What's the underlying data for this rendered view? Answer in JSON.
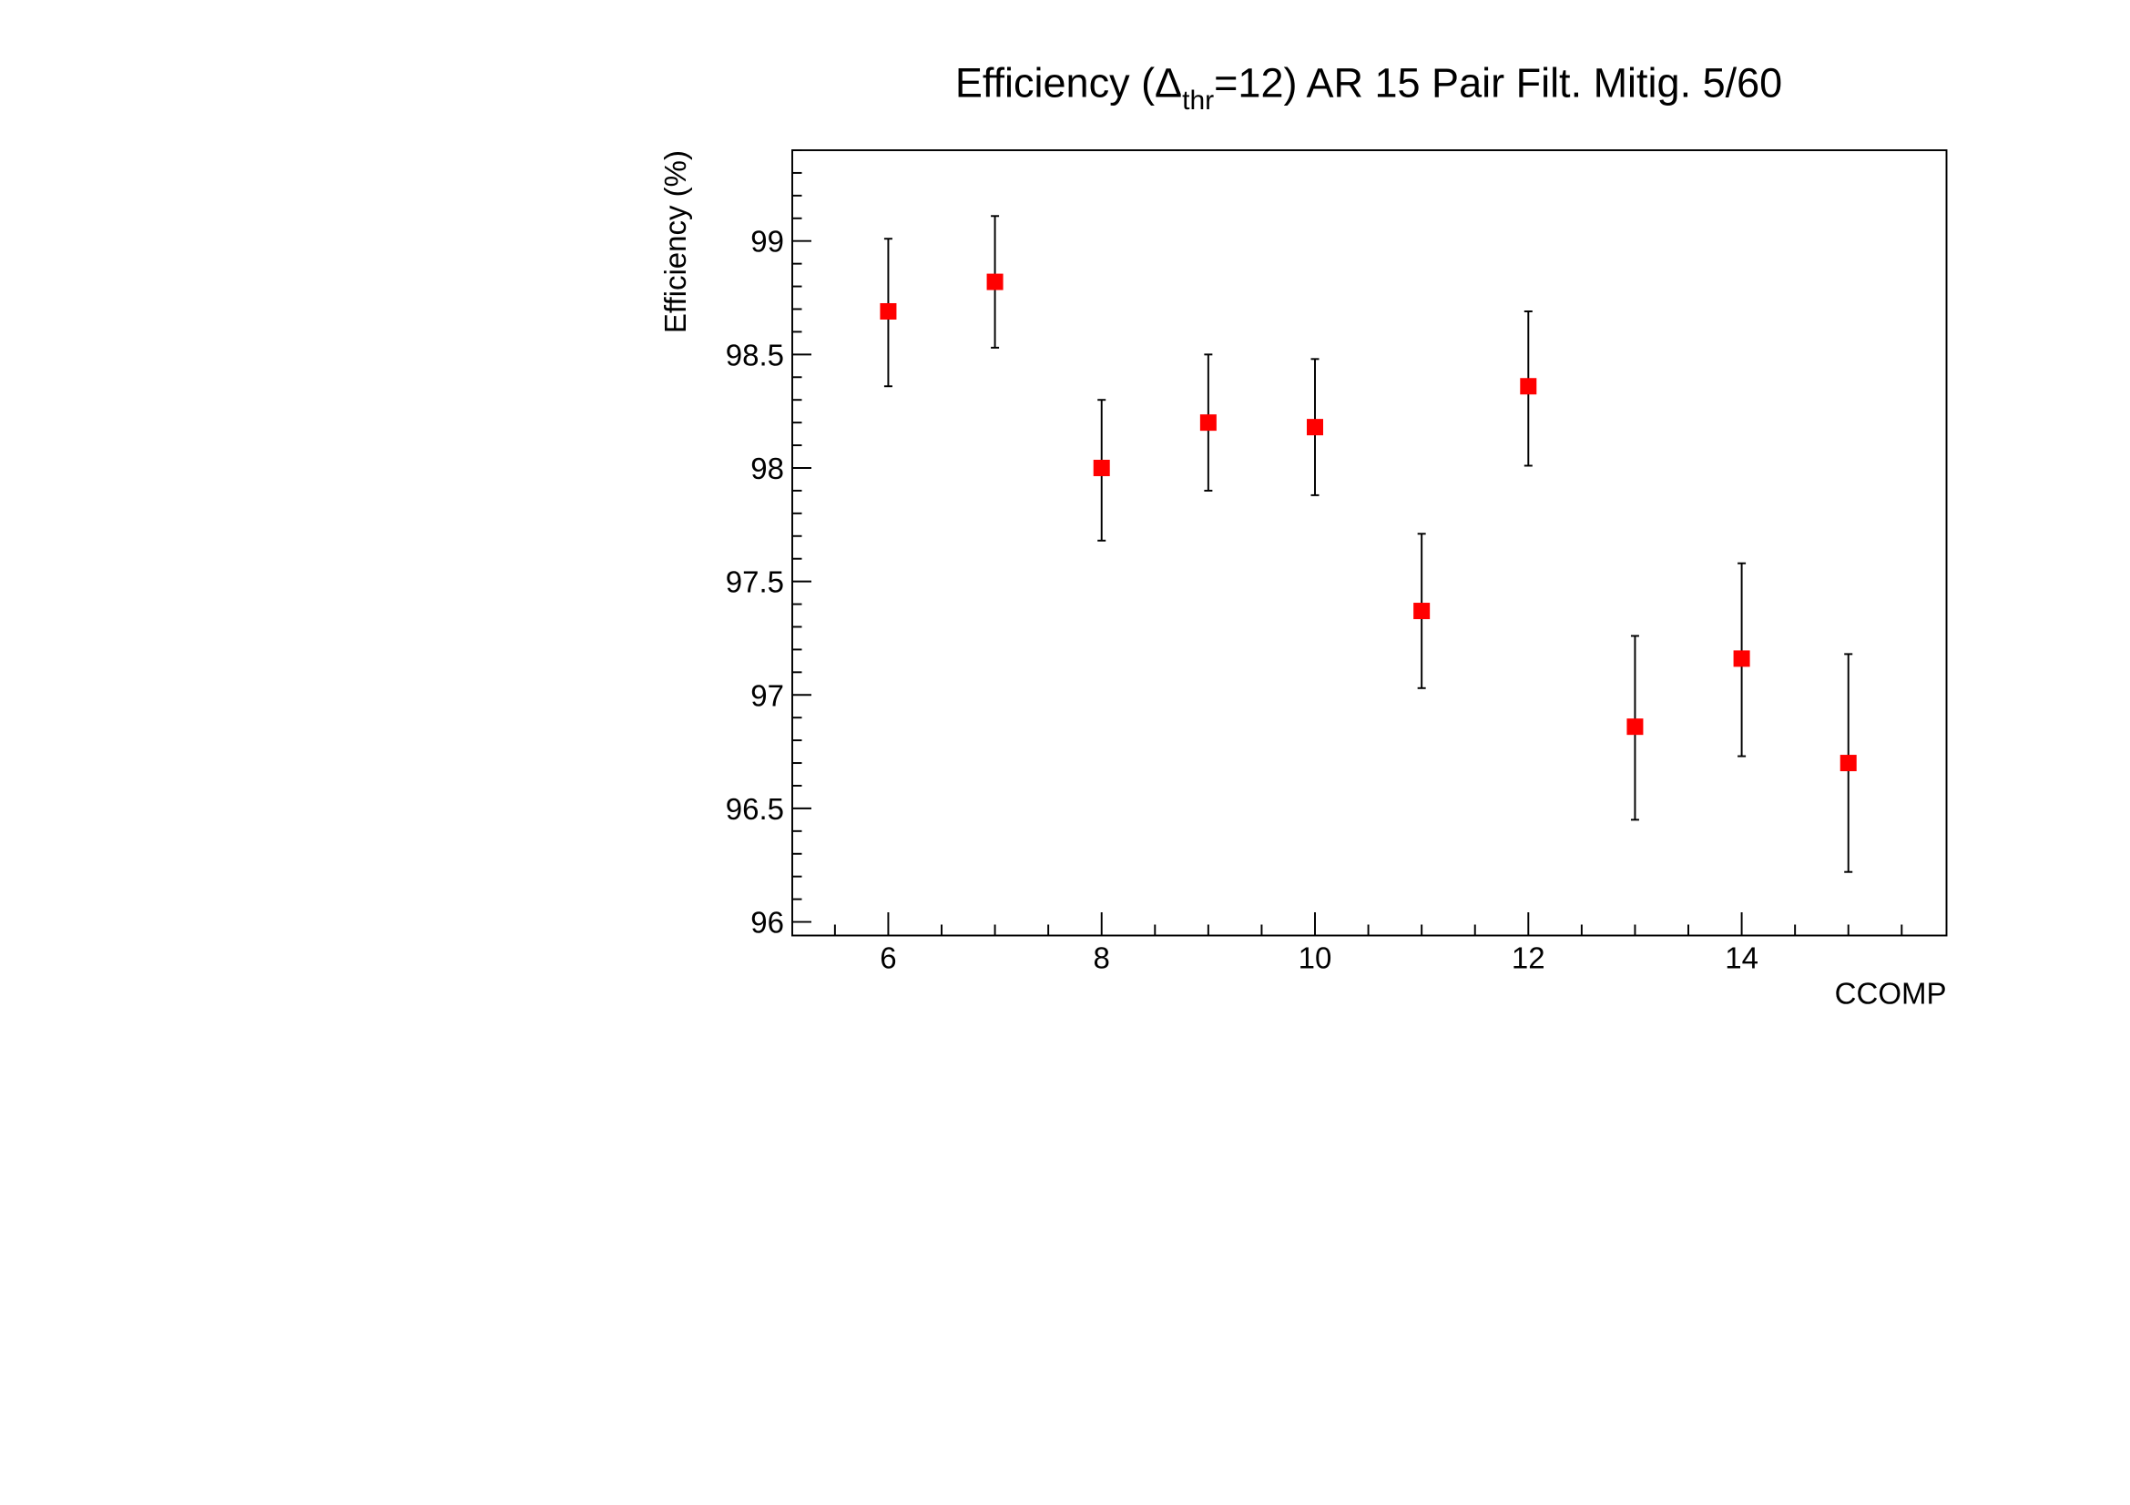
{
  "chart_data": {
    "type": "scatter",
    "title": {
      "prefix": "Efficiency (Δ",
      "subscript": "thr",
      "suffix": "=12)  AR 15 Pair Filt. Mitig. 5/60"
    },
    "xlabel": "CCOMP",
    "ylabel": "Efficiency (%)",
    "xlim": [
      5.1,
      15.92
    ],
    "ylim": [
      95.94,
      99.4
    ],
    "x_major_ticks": [
      6,
      8,
      10,
      12,
      14
    ],
    "x_tick_labels": [
      "6",
      "8",
      "10",
      "12",
      "14"
    ],
    "x_minor_step": 0.5,
    "y_major_ticks": [
      96,
      96.5,
      97,
      97.5,
      98,
      98.5,
      99
    ],
    "y_tick_labels": [
      "96",
      "96.5",
      "97",
      "97.5",
      "98",
      "98.5",
      "99"
    ],
    "y_minor_step": 0.1,
    "grid": false,
    "marker_color": "#ff0000",
    "series": [
      {
        "name": "Efficiency",
        "x": [
          6,
          7,
          8,
          9,
          10,
          11,
          12,
          13,
          14,
          15
        ],
        "y": [
          98.69,
          98.82,
          98.0,
          98.2,
          98.18,
          97.37,
          98.36,
          96.86,
          97.16,
          96.7
        ],
        "err_low": [
          0.33,
          0.29,
          0.32,
          0.3,
          0.3,
          0.34,
          0.35,
          0.41,
          0.43,
          0.48
        ],
        "err_high": [
          0.32,
          0.29,
          0.3,
          0.3,
          0.3,
          0.34,
          0.33,
          0.4,
          0.42,
          0.48
        ]
      }
    ]
  }
}
